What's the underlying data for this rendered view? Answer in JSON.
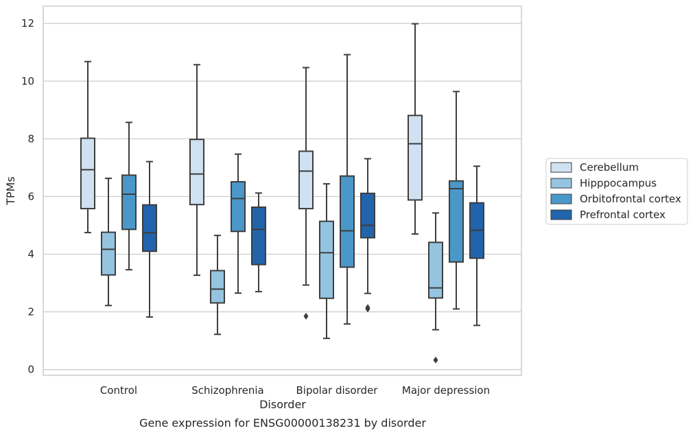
{
  "caption": "Gene expression for ENSG00000138231 by disorder",
  "chart_data": {
    "type": "boxplot",
    "xlabel": "Disorder",
    "ylabel": "TPMs",
    "ylim": [
      -0.2,
      12.6
    ],
    "yticks": [
      0,
      2,
      4,
      6,
      8,
      10,
      12
    ],
    "grid": "horizontal",
    "legend_position": "right",
    "categories": [
      "Control",
      "Schizophrenia",
      "Bipolar disorder",
      "Major depression"
    ],
    "series": [
      {
        "name": "Cerebellum",
        "color": "#d0e1f2",
        "boxes": [
          {
            "whisker_low": 4.75,
            "q1": 5.58,
            "median": 6.93,
            "q3": 8.02,
            "whisker_high": 10.68,
            "outliers": []
          },
          {
            "whisker_low": 3.27,
            "q1": 5.72,
            "median": 6.78,
            "q3": 7.98,
            "whisker_high": 10.57,
            "outliers": []
          },
          {
            "whisker_low": 2.93,
            "q1": 5.58,
            "median": 6.88,
            "q3": 7.57,
            "whisker_high": 10.47,
            "outliers": [
              1.85
            ]
          },
          {
            "whisker_low": 4.7,
            "q1": 5.88,
            "median": 7.83,
            "q3": 8.81,
            "whisker_high": 11.99,
            "outliers": []
          }
        ]
      },
      {
        "name": "Hipppocampus",
        "color": "#94c4df",
        "boxes": [
          {
            "whisker_low": 2.22,
            "q1": 3.28,
            "median": 4.17,
            "q3": 4.76,
            "whisker_high": 6.63,
            "outliers": []
          },
          {
            "whisker_low": 1.22,
            "q1": 2.31,
            "median": 2.79,
            "q3": 3.43,
            "whisker_high": 4.65,
            "outliers": []
          },
          {
            "whisker_low": 1.08,
            "q1": 2.47,
            "median": 4.05,
            "q3": 5.14,
            "whisker_high": 6.44,
            "outliers": []
          },
          {
            "whisker_low": 1.38,
            "q1": 2.48,
            "median": 2.83,
            "q3": 4.41,
            "whisker_high": 5.43,
            "outliers": [
              0.33
            ]
          }
        ]
      },
      {
        "name": "Orbitofrontal cortex",
        "color": "#4a98c9",
        "boxes": [
          {
            "whisker_low": 3.46,
            "q1": 4.86,
            "median": 6.08,
            "q3": 6.74,
            "whisker_high": 8.57,
            "outliers": []
          },
          {
            "whisker_low": 2.65,
            "q1": 4.79,
            "median": 5.93,
            "q3": 6.51,
            "whisker_high": 7.47,
            "outliers": []
          },
          {
            "whisker_low": 1.58,
            "q1": 3.55,
            "median": 4.81,
            "q3": 6.71,
            "whisker_high": 10.92,
            "outliers": []
          },
          {
            "whisker_low": 2.1,
            "q1": 3.73,
            "median": 6.27,
            "q3": 6.54,
            "whisker_high": 9.64,
            "outliers": []
          }
        ]
      },
      {
        "name": "Prefrontal cortex",
        "color": "#2164ab",
        "boxes": [
          {
            "whisker_low": 1.82,
            "q1": 4.1,
            "median": 4.74,
            "q3": 5.71,
            "whisker_high": 7.21,
            "outliers": []
          },
          {
            "whisker_low": 2.7,
            "q1": 3.64,
            "median": 4.86,
            "q3": 5.63,
            "whisker_high": 6.12,
            "outliers": []
          },
          {
            "whisker_low": 2.64,
            "q1": 4.57,
            "median": 5.0,
            "q3": 6.11,
            "whisker_high": 7.31,
            "outliers": [
              2.15,
              2.1
            ]
          },
          {
            "whisker_low": 1.53,
            "q1": 3.86,
            "median": 4.83,
            "q3": 5.78,
            "whisker_high": 7.05,
            "outliers": []
          }
        ]
      }
    ]
  }
}
